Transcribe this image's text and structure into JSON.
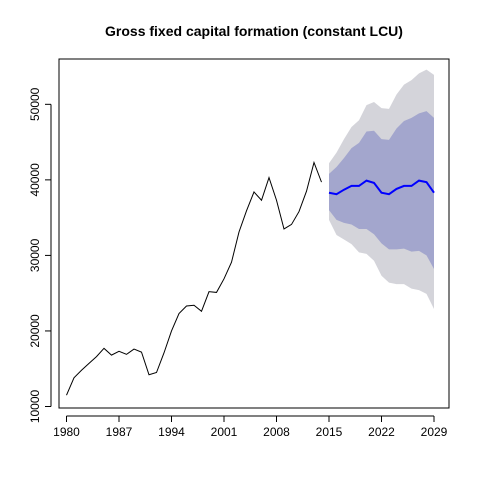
{
  "chart_data": {
    "type": "line",
    "title": "Gross fixed capital formation (constant LCU)",
    "xlabel": "",
    "ylabel": "",
    "xlim": [
      1979,
      2031
    ],
    "ylim": [
      9800,
      56000
    ],
    "x_ticks": [
      1980,
      1987,
      1994,
      2001,
      2008,
      2015,
      2022,
      2029
    ],
    "y_ticks": [
      10000,
      20000,
      30000,
      40000,
      50000
    ],
    "grid": false,
    "legend": "none",
    "colors": {
      "history": "#000000",
      "forecast": "#0000ff",
      "band_80": "#a3a6cd",
      "band_95": "#d4d4da"
    },
    "history": {
      "x": [
        1980,
        1981,
        1982,
        1983,
        1984,
        1985,
        1986,
        1987,
        1988,
        1989,
        1990,
        1991,
        1992,
        1993,
        1994,
        1995,
        1996,
        1997,
        1998,
        1999,
        2000,
        2001,
        2002,
        2003,
        2004,
        2005,
        2006,
        2007,
        2008,
        2009,
        2010,
        2011,
        2012,
        2013,
        2014
      ],
      "y": [
        11500,
        13800,
        14800,
        15700,
        16600,
        17700,
        16800,
        17300,
        16900,
        17600,
        17200,
        14200,
        14500,
        17100,
        20000,
        22300,
        23300,
        23400,
        22600,
        25200,
        25100,
        26900,
        29100,
        33100,
        35900,
        38400,
        37300,
        40300,
        37300,
        33500,
        34100,
        35800,
        38500,
        42300,
        39700
      ]
    },
    "forecast": {
      "x": [
        2015,
        2016,
        2017,
        2018,
        2019,
        2020,
        2021,
        2022,
        2023,
        2024,
        2025,
        2026,
        2027,
        2028,
        2029
      ],
      "mean": [
        38300,
        38100,
        38700,
        39200,
        39200,
        39900,
        39600,
        38300,
        38100,
        38800,
        39200,
        39200,
        39900,
        39700,
        38300
      ],
      "lo80": [
        36000,
        34700,
        34300,
        34100,
        33500,
        33500,
        32800,
        31600,
        30800,
        30800,
        30900,
        30500,
        30600,
        30000,
        28200
      ],
      "hi80": [
        40800,
        41700,
        42900,
        44200,
        44900,
        46400,
        46500,
        45400,
        45300,
        46800,
        47800,
        48200,
        48800,
        49100,
        48200
      ],
      "lo95": [
        34700,
        32700,
        32100,
        31500,
        30400,
        30200,
        29300,
        27300,
        26400,
        26200,
        26200,
        25600,
        25400,
        24900,
        22900
      ],
      "hi95": [
        42200,
        43600,
        45400,
        47000,
        47900,
        49900,
        50300,
        49500,
        49400,
        51300,
        52600,
        53200,
        54100,
        54600,
        53900
      ]
    }
  }
}
